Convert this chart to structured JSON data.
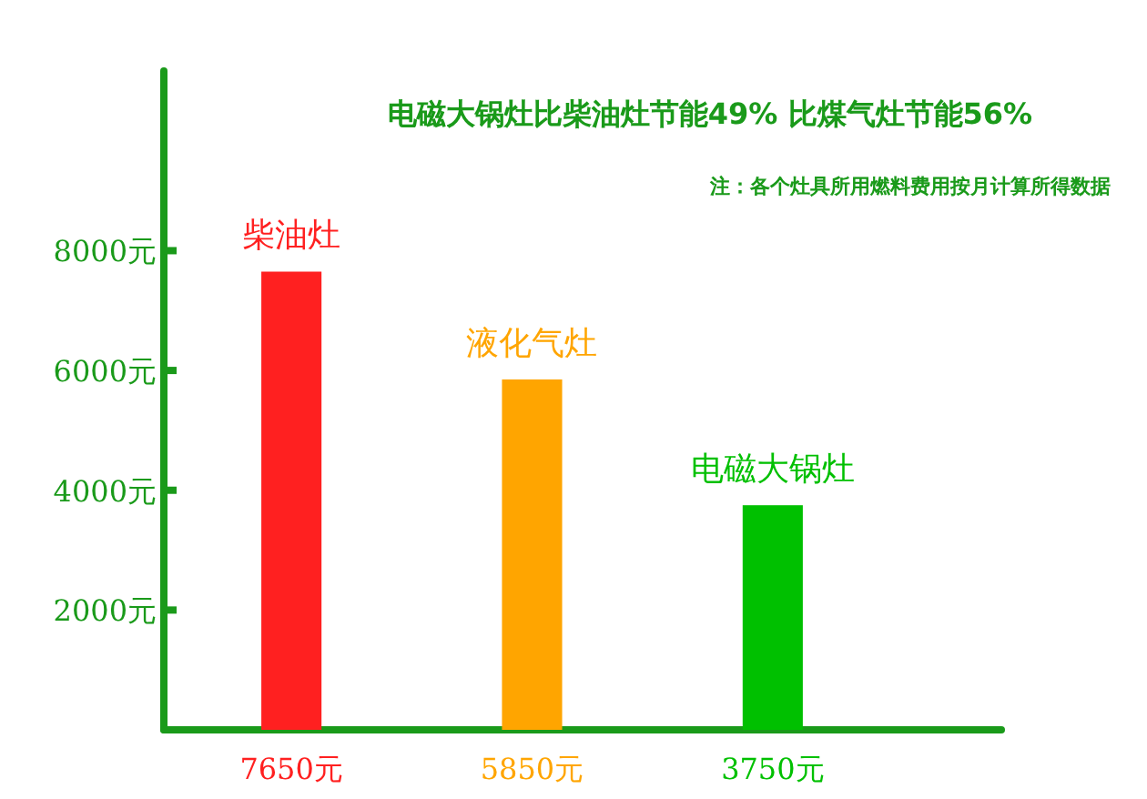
{
  "chart_data": {
    "type": "bar",
    "title": "电磁大锅灶比柴油灶节能49%  比煤气灶节能56%",
    "annotations": [
      "注：各个灶具所用燃料费用按月计算所得数据"
    ],
    "categories": [
      "柴油灶",
      "液化气灶",
      "电磁大锅灶"
    ],
    "values": [
      7650,
      5850,
      3750
    ],
    "colors": [
      "#ff2020",
      "#ffa500",
      "#00c000"
    ],
    "value_labels": [
      "7650元",
      "5850元",
      "3750元"
    ],
    "ylim": [
      0,
      11000
    ],
    "yticks": [
      {
        "value": 2000,
        "label": "2000元"
      },
      {
        "value": 4000,
        "label": "4000元"
      },
      {
        "value": 6000,
        "label": "6000元"
      },
      {
        "value": 8000,
        "label": "8000元"
      }
    ]
  }
}
